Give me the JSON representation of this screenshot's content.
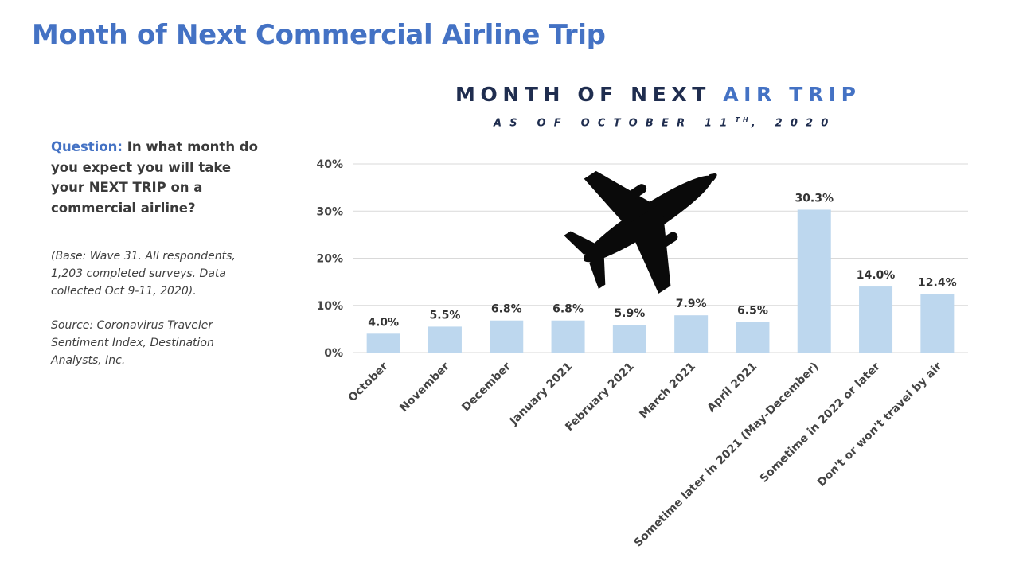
{
  "slide": {
    "title": "Month of Next Commercial Airline Trip"
  },
  "question": {
    "label": "Question:",
    "text": "In what month do you expect you will take your NEXT TRIP on a commercial airline?"
  },
  "notes": {
    "base": "(Base: Wave 31. All respondents, 1,203 completed surveys. Data collected Oct 9-11, 2020).",
    "source": "Source: Coronavirus Traveler Sentiment Index, Destination Analysts, Inc."
  },
  "chart_title": {
    "part1": "MONTH OF NEXT ",
    "part2": "AIR TRIP",
    "subtitle_main": "AS OF OCTOBER 11",
    "subtitle_sup": "TH",
    "subtitle_end": ", 2020"
  },
  "icons": {
    "decoration": "airplane-icon"
  },
  "colors": {
    "title": "#4472c4",
    "bar": "#bdd7ee",
    "chart_title_dark": "#1f2d4f",
    "grid": "#d9d9d9"
  },
  "chart_data": {
    "type": "bar",
    "categories": [
      "October",
      "November",
      "December",
      "January 2021",
      "February 2021",
      "March 2021",
      "April 2021",
      "Sometime later in 2021 (May-December)",
      "Sometime in 2022 or later",
      "Don't or won't travel by air"
    ],
    "values": [
      4.0,
      5.5,
      6.8,
      6.8,
      5.9,
      7.9,
      6.5,
      30.3,
      14.0,
      12.4
    ],
    "value_labels": [
      "4.0%",
      "5.5%",
      "6.8%",
      "6.8%",
      "5.9%",
      "7.9%",
      "6.5%",
      "30.3%",
      "14.0%",
      "12.4%"
    ],
    "yticks": [
      0,
      10,
      20,
      30,
      40
    ],
    "ytick_labels": [
      "0%",
      "10%",
      "20%",
      "30%",
      "40%"
    ],
    "ylim": [
      0,
      40
    ],
    "grid": true,
    "legend": "none"
  }
}
